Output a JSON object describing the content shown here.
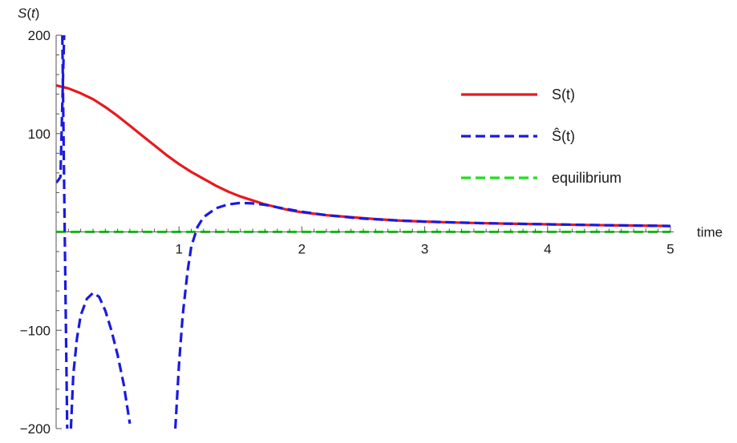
{
  "chart_data": {
    "type": "line",
    "title": "",
    "xlabel": "time",
    "ylabel": "S(t)",
    "ylabel_italic_part": "S",
    "xlim": [
      0,
      5
    ],
    "ylim": [
      -200,
      200
    ],
    "xticks": [
      1,
      2,
      3,
      4,
      5
    ],
    "yticks": [
      -200,
      -100,
      0,
      100,
      200
    ],
    "xtick_labels": [
      "1",
      "2",
      "3",
      "4",
      "5"
    ],
    "ytick_labels": [
      "−200",
      "−100",
      "",
      "100",
      "200"
    ],
    "grid": false,
    "legend_position": "top-right",
    "series": [
      {
        "name": "S(t)",
        "color": "#e8191e",
        "style": "solid",
        "x": [
          0,
          0.1,
          0.2,
          0.3,
          0.4,
          0.5,
          0.6,
          0.7,
          0.8,
          0.9,
          1.0,
          1.1,
          1.2,
          1.3,
          1.4,
          1.5,
          1.6,
          1.7,
          1.8,
          1.9,
          2.0,
          2.2,
          2.4,
          2.6,
          2.8,
          3.0,
          3.25,
          3.5,
          3.75,
          4.0,
          4.25,
          4.5,
          4.75,
          5.0
        ],
        "y": [
          149,
          146,
          141,
          135,
          127,
          118,
          108,
          98,
          88,
          78,
          69,
          61,
          54,
          47,
          41,
          36,
          32,
          28,
          25,
          22,
          20,
          17,
          15,
          13,
          11.5,
          10.5,
          9.5,
          8.8,
          8.2,
          7.7,
          7.2,
          6.8,
          6.4,
          6.0
        ]
      },
      {
        "name": "Ŝ(t)",
        "color": "#1a1ae0",
        "style": "dashed",
        "segments": [
          {
            "x": [
              0.0,
              0.02,
              0.035,
              0.05,
              0.065
            ],
            "y": [
              50,
              53,
              56,
              130,
              200
            ]
          },
          {
            "x": [
              0.05,
              0.07,
              0.09
            ],
            "y": [
              200,
              0,
              -200
            ]
          },
          {
            "x": [
              0.12,
              0.14,
              0.17,
              0.2,
              0.25,
              0.3,
              0.35,
              0.4,
              0.45,
              0.5,
              0.55,
              0.6
            ],
            "y": [
              -200,
              -145,
              -108,
              -85,
              -68,
              -62,
              -66,
              -80,
              -100,
              -125,
              -155,
              -195
            ]
          },
          {
            "x": [
              0.97,
              1.0,
              1.03,
              1.07,
              1.1,
              1.15,
              1.2,
              1.3,
              1.4,
              1.5,
              1.6,
              1.7,
              1.8,
              2.0,
              2.2,
              2.5,
              2.8,
              3.0,
              3.5,
              4.0,
              4.5,
              5.0
            ],
            "y": [
              -200,
              -135,
              -85,
              -40,
              -15,
              5,
              15,
              24,
              28,
              29.5,
              29,
              27.5,
              25,
              20.5,
              17,
              13.5,
              11.5,
              10.5,
              8.8,
              7.7,
              6.8,
              6.0
            ]
          }
        ]
      },
      {
        "name": "equilibrium",
        "color": "#1ee01e",
        "style": "dashed",
        "x": [
          0,
          5
        ],
        "y": [
          0,
          0
        ]
      }
    ],
    "legend": [
      {
        "label": "S(t)"
      },
      {
        "label": "Ŝ(t)"
      },
      {
        "label": "equilibrium"
      }
    ]
  }
}
